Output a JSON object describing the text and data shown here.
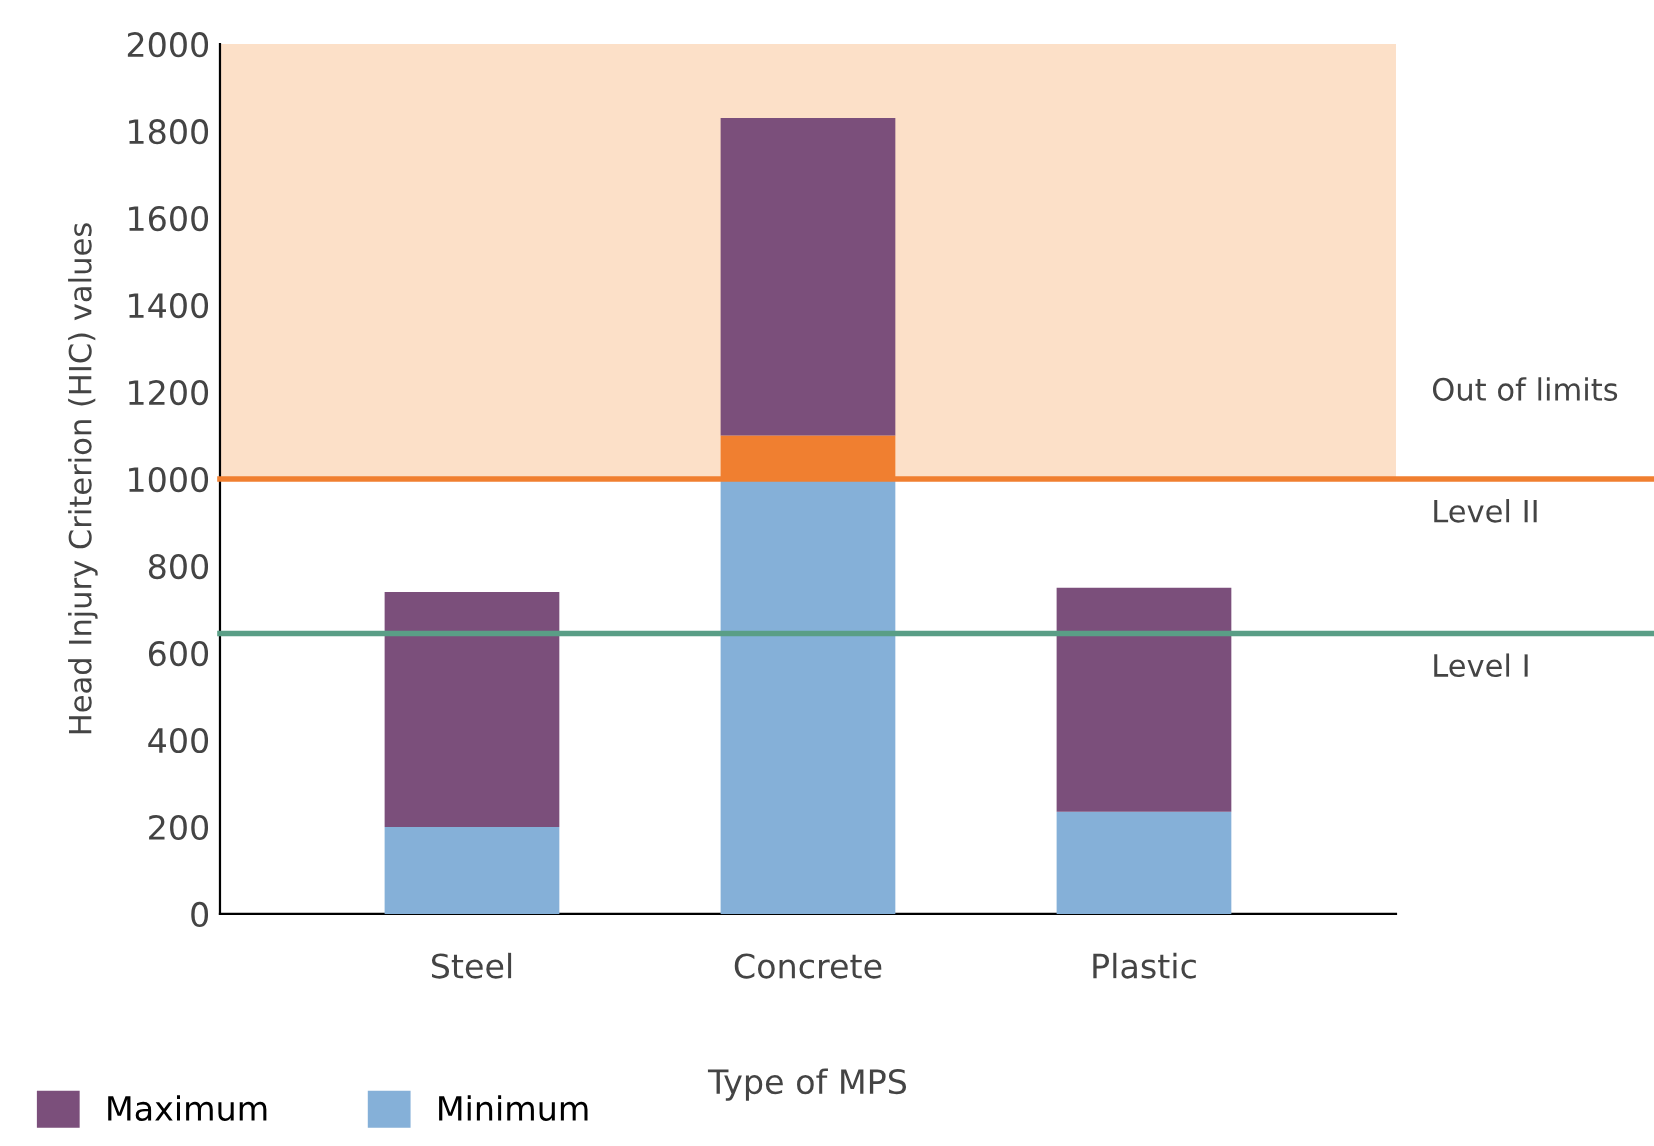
{
  "chart_data": {
    "type": "bar",
    "stacked": true,
    "ylabel": "Head Injury Criterion (HIC) values",
    "xlabel": "Type of MPS",
    "categories": [
      "Steel",
      "Concrete",
      "Plastic"
    ],
    "series": [
      {
        "name": "Minimum",
        "color": "#85b0d8",
        "values": [
          200,
          1000,
          235
        ]
      },
      {
        "color": "#f07f30",
        "values": [
          0,
          100,
          0
        ]
      },
      {
        "name": "Maximum",
        "color": "#7b4f7b",
        "values": [
          540,
          730,
          515
        ]
      }
    ],
    "ylim": [
      0,
      2000
    ],
    "yticks": [
      0,
      200,
      400,
      600,
      800,
      1000,
      1200,
      1400,
      1600,
      1800,
      2000
    ],
    "ref_lines": [
      {
        "axis": "y",
        "value": 1000,
        "label": "Level II",
        "color": "#f07f30"
      },
      {
        "axis": "y",
        "value": 645,
        "label": "Level I",
        "color": "#5a9e86"
      }
    ],
    "bands": [
      {
        "axis": "y",
        "from": 1000,
        "to": 2000,
        "label": "Out of limits",
        "color": "#fce0c8"
      }
    ],
    "grid": false,
    "legend": "bottom left"
  }
}
